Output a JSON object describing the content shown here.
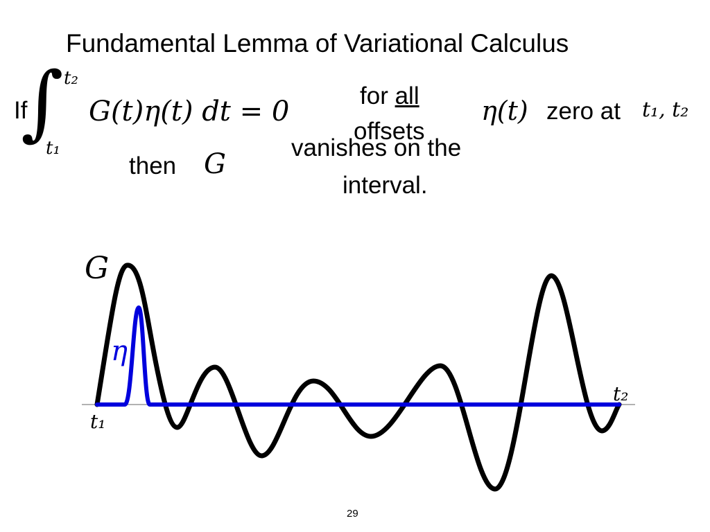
{
  "slide": {
    "title": "Fundamental Lemma of  Variational Calculus",
    "if_label": "If",
    "integral_sign": "∫",
    "upper_limit": "t₂",
    "lower_limit": "t₁",
    "integrand": "G(t)η(t) dt = 0",
    "for_text": "for ",
    "all_text": "all",
    "offsets_text": "offsets",
    "eta_of_t": "η(t)",
    "zero_at_text": "zero at",
    "zero_at_points": "t₁, t₂",
    "then_label": "then",
    "then_symbol": "G",
    "vanishes_text": "vanishes on the",
    "interval_text": "interval.",
    "page_number": "29"
  },
  "diagram": {
    "g_label": "G",
    "eta_label": "η",
    "t1_label": "t₁",
    "t2_label": "t₂",
    "colors": {
      "g_curve": "#000000",
      "eta_curve": "#0000dd",
      "axis": "#999999",
      "eta_label": "#0000dd"
    }
  }
}
